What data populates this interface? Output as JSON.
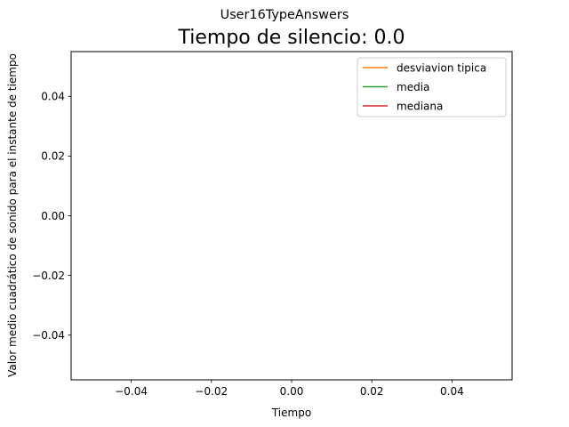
{
  "chart_data": {
    "type": "line",
    "suptitle": "User16TypeAnswers",
    "title": "Tiempo de silencio: 0.0",
    "xlabel": "Tiempo",
    "ylabel": "Valor medio cuadrático de sonido para el instante de tiempo",
    "xlim": [
      -0.055,
      0.055
    ],
    "ylim": [
      -0.055,
      0.055
    ],
    "xticks": [
      -0.04,
      -0.02,
      0.0,
      0.02,
      0.04
    ],
    "xtick_labels": [
      "−0.04",
      "−0.02",
      "0.00",
      "0.02",
      "0.04"
    ],
    "yticks": [
      0.04,
      0.02,
      0.0,
      -0.02,
      -0.04
    ],
    "ytick_labels": [
      "0.04",
      "0.02",
      "0.00",
      "−0.02",
      "−0.04"
    ],
    "grid": false,
    "legend_position": "upper right",
    "series": [
      {
        "name": "desviavion tipica",
        "color": "#ff7f0e",
        "x": [],
        "y": []
      },
      {
        "name": "media",
        "color": "#2ca02c",
        "x": [],
        "y": []
      },
      {
        "name": "mediana",
        "color": "#d62728",
        "x": [],
        "y": []
      }
    ]
  }
}
